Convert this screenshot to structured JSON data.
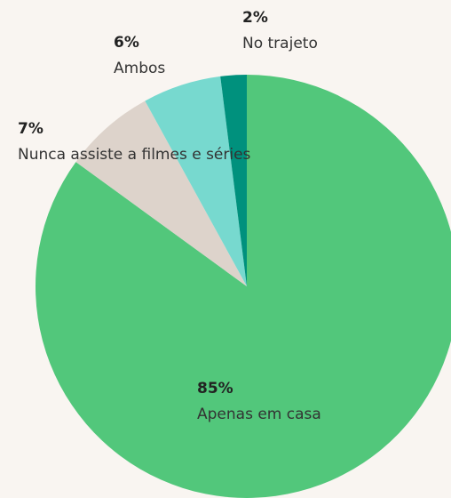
{
  "chart_data": {
    "type": "pie",
    "categories": [
      "Apenas em casa",
      "Nunca assiste a filmes e séries",
      "Ambos",
      "No trajeto"
    ],
    "values": [
      85,
      7,
      6,
      2
    ],
    "value_labels": [
      "85%",
      "7%",
      "6%",
      "2%"
    ],
    "colors": [
      "#52c77b",
      "#ddd3cb",
      "#77d9cf",
      "#00917d"
    ]
  }
}
